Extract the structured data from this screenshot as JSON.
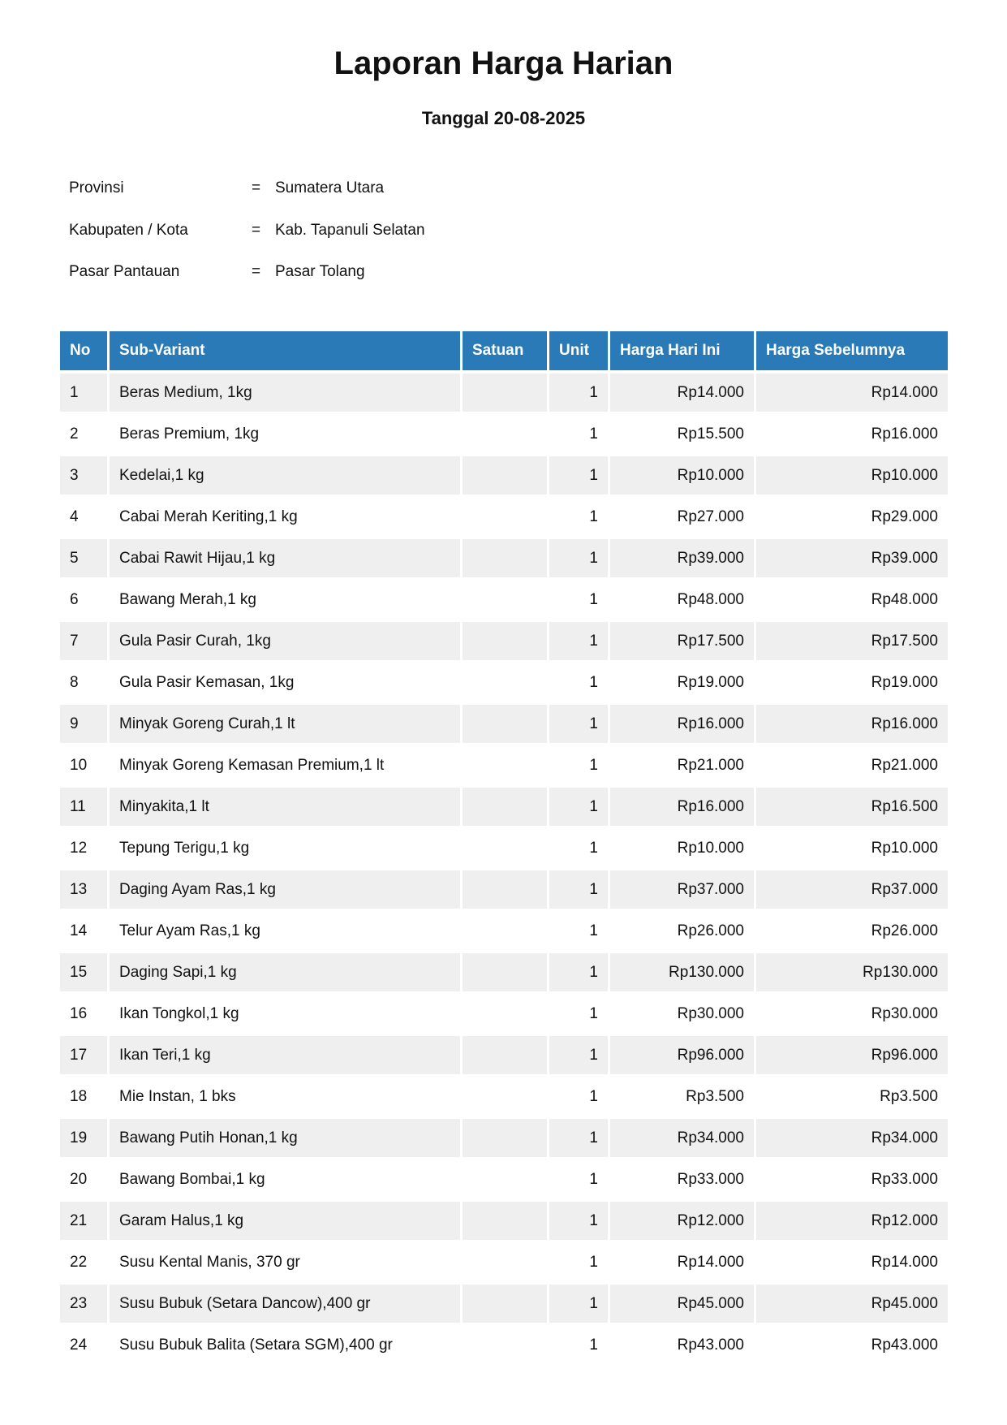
{
  "title": "Laporan Harga Harian",
  "subtitle": "Tanggal 20-08-2025",
  "meta": [
    {
      "label": "Provinsi",
      "sep": "=",
      "value": "Sumatera Utara"
    },
    {
      "label": "Kabupaten / Kota",
      "sep": "=",
      "value": "Kab. Tapanuli Selatan"
    },
    {
      "label": "Pasar Pantauan",
      "sep": "=",
      "value": "Pasar Tolang"
    }
  ],
  "table": {
    "headers": [
      "No",
      "Sub-Variant",
      "Satuan",
      "Unit",
      "Harga Hari Ini",
      "Harga Sebelumnya"
    ],
    "rows": [
      [
        "1",
        "Beras Medium, 1kg",
        "",
        "1",
        "Rp14.000",
        "Rp14.000"
      ],
      [
        "2",
        "Beras Premium, 1kg",
        "",
        "1",
        "Rp15.500",
        "Rp16.000"
      ],
      [
        "3",
        "Kedelai,1 kg",
        "",
        "1",
        "Rp10.000",
        "Rp10.000"
      ],
      [
        "4",
        "Cabai Merah Keriting,1 kg",
        "",
        "1",
        "Rp27.000",
        "Rp29.000"
      ],
      [
        "5",
        "Cabai Rawit Hijau,1 kg",
        "",
        "1",
        "Rp39.000",
        "Rp39.000"
      ],
      [
        "6",
        "Bawang Merah,1 kg",
        "",
        "1",
        "Rp48.000",
        "Rp48.000"
      ],
      [
        "7",
        "Gula Pasir Curah, 1kg",
        "",
        "1",
        "Rp17.500",
        "Rp17.500"
      ],
      [
        "8",
        "Gula Pasir Kemasan, 1kg",
        "",
        "1",
        "Rp19.000",
        "Rp19.000"
      ],
      [
        "9",
        "Minyak Goreng Curah,1 lt",
        "",
        "1",
        "Rp16.000",
        "Rp16.000"
      ],
      [
        "10",
        "Minyak Goreng Kemasan Premium,1 lt",
        "",
        "1",
        "Rp21.000",
        "Rp21.000"
      ],
      [
        "11",
        "Minyakita,1 lt",
        "",
        "1",
        "Rp16.000",
        "Rp16.500"
      ],
      [
        "12",
        "Tepung Terigu,1 kg",
        "",
        "1",
        "Rp10.000",
        "Rp10.000"
      ],
      [
        "13",
        "Daging Ayam Ras,1 kg",
        "",
        "1",
        "Rp37.000",
        "Rp37.000"
      ],
      [
        "14",
        "Telur Ayam Ras,1 kg",
        "",
        "1",
        "Rp26.000",
        "Rp26.000"
      ],
      [
        "15",
        "Daging Sapi,1 kg",
        "",
        "1",
        "Rp130.000",
        "Rp130.000"
      ],
      [
        "16",
        "Ikan Tongkol,1 kg",
        "",
        "1",
        "Rp30.000",
        "Rp30.000"
      ],
      [
        "17",
        "Ikan Teri,1 kg",
        "",
        "1",
        "Rp96.000",
        "Rp96.000"
      ],
      [
        "18",
        "Mie Instan, 1 bks",
        "",
        "1",
        "Rp3.500",
        "Rp3.500"
      ],
      [
        "19",
        "Bawang Putih Honan,1 kg",
        "",
        "1",
        "Rp34.000",
        "Rp34.000"
      ],
      [
        "20",
        "Bawang Bombai,1 kg",
        "",
        "1",
        "Rp33.000",
        "Rp33.000"
      ],
      [
        "21",
        "Garam Halus,1 kg",
        "",
        "1",
        "Rp12.000",
        "Rp12.000"
      ],
      [
        "22",
        "Susu Kental Manis, 370 gr",
        "",
        "1",
        "Rp14.000",
        "Rp14.000"
      ],
      [
        "23",
        "Susu Bubuk (Setara Dancow),400 gr",
        "",
        "1",
        "Rp45.000",
        "Rp45.000"
      ],
      [
        "24",
        "Susu Bubuk Balita (Setara SGM),400 gr",
        "",
        "1",
        "Rp43.000",
        "Rp43.000"
      ]
    ]
  },
  "colors": {
    "header_bg": "#2a7ab8",
    "stripe": "#efefef"
  }
}
